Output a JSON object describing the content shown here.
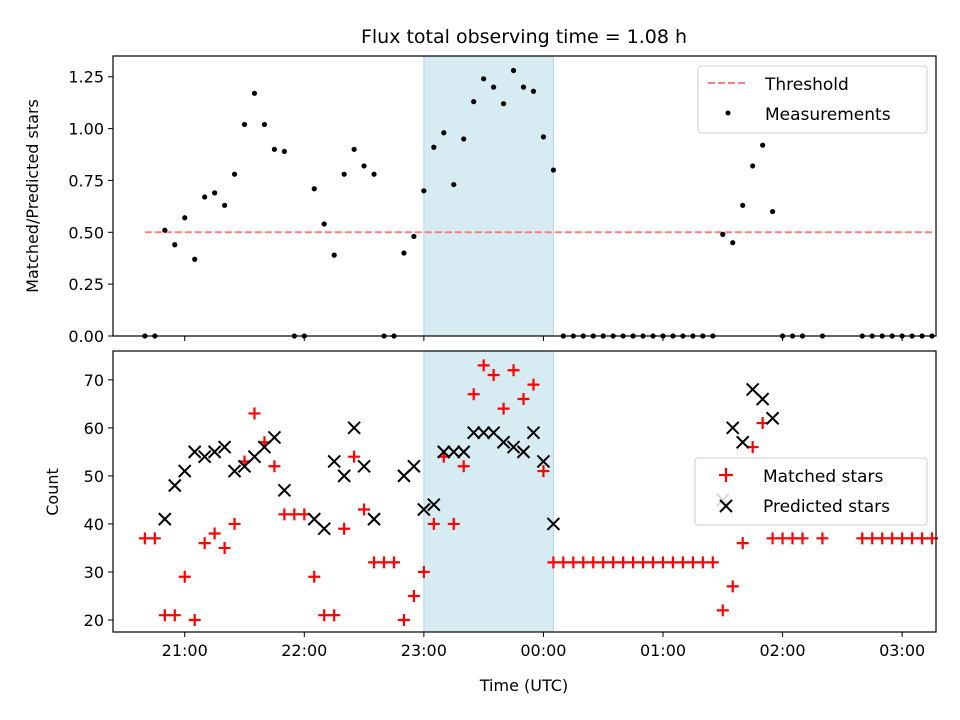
{
  "chart_data": [
    {
      "type": "scatter",
      "title": "Flux total observing time = 1.08 h",
      "ylabel": "Matched/Predicted stars",
      "xlabel": "",
      "x_ticks": [
        "21:00",
        "22:00",
        "23:00",
        "00:00",
        "01:00",
        "02:00",
        "03:00"
      ],
      "ylim": [
        0,
        1.35
      ],
      "y_ticks": [
        "0.00",
        "0.25",
        "0.50",
        "0.75",
        "1.00",
        "1.25"
      ],
      "shaded_interval": [
        "23:00",
        "00:05"
      ],
      "legend": {
        "position": "top-right",
        "entries": [
          "Threshold",
          "Measurements"
        ]
      },
      "threshold": {
        "name": "Threshold",
        "value": 0.5,
        "x_range": [
          "20:40",
          "03:15"
        ],
        "color": "#ff7f7f"
      },
      "series": [
        {
          "name": "Measurements",
          "color": "#000000",
          "points": [
            [
              "20:40",
              0
            ],
            [
              "20:45",
              0
            ],
            [
              "20:50",
              0.51
            ],
            [
              "20:55",
              0.44
            ],
            [
              "21:00",
              0.57
            ],
            [
              "21:05",
              0.37
            ],
            [
              "21:10",
              0.67
            ],
            [
              "21:15",
              0.69
            ],
            [
              "21:20",
              0.63
            ],
            [
              "21:25",
              0.78
            ],
            [
              "21:30",
              1.02
            ],
            [
              "21:35",
              1.17
            ],
            [
              "21:40",
              1.02
            ],
            [
              "21:45",
              0.9
            ],
            [
              "21:50",
              0.89
            ],
            [
              "21:55",
              0
            ],
            [
              "22:00",
              0
            ],
            [
              "22:05",
              0.71
            ],
            [
              "22:10",
              0.54
            ],
            [
              "22:15",
              0.39
            ],
            [
              "22:20",
              0.78
            ],
            [
              "22:25",
              0.9
            ],
            [
              "22:30",
              0.82
            ],
            [
              "22:35",
              0.78
            ],
            [
              "22:40",
              0
            ],
            [
              "22:45",
              0
            ],
            [
              "22:50",
              0.4
            ],
            [
              "22:55",
              0.48
            ],
            [
              "23:00",
              0.7
            ],
            [
              "23:05",
              0.91
            ],
            [
              "23:10",
              0.98
            ],
            [
              "23:15",
              0.73
            ],
            [
              "23:20",
              0.95
            ],
            [
              "23:25",
              1.13
            ],
            [
              "23:30",
              1.24
            ],
            [
              "23:35",
              1.2
            ],
            [
              "23:40",
              1.12
            ],
            [
              "23:45",
              1.28
            ],
            [
              "23:50",
              1.2
            ],
            [
              "23:55",
              1.18
            ],
            [
              "00:00",
              0.96
            ],
            [
              "00:05",
              0.8
            ],
            [
              "00:10",
              0
            ],
            [
              "00:15",
              0
            ],
            [
              "00:20",
              0
            ],
            [
              "00:25",
              0
            ],
            [
              "00:30",
              0
            ],
            [
              "00:35",
              0
            ],
            [
              "00:40",
              0
            ],
            [
              "00:45",
              0
            ],
            [
              "00:50",
              0
            ],
            [
              "00:55",
              0
            ],
            [
              "01:00",
              0
            ],
            [
              "01:05",
              0
            ],
            [
              "01:10",
              0
            ],
            [
              "01:15",
              0
            ],
            [
              "01:20",
              0
            ],
            [
              "01:25",
              0
            ],
            [
              "01:30",
              0.49
            ],
            [
              "01:35",
              0.45
            ],
            [
              "01:40",
              0.63
            ],
            [
              "01:45",
              0.82
            ],
            [
              "01:50",
              0.92
            ],
            [
              "01:55",
              0.6
            ],
            [
              "02:00",
              0
            ],
            [
              "02:05",
              0
            ],
            [
              "02:10",
              0
            ],
            [
              "02:20",
              0
            ],
            [
              "02:40",
              0
            ],
            [
              "02:45",
              0
            ],
            [
              "02:50",
              0
            ],
            [
              "02:55",
              0
            ],
            [
              "03:00",
              0
            ],
            [
              "03:05",
              0
            ],
            [
              "03:10",
              0
            ],
            [
              "03:15",
              0
            ]
          ]
        }
      ]
    },
    {
      "type": "scatter",
      "title": "",
      "ylabel": "Count",
      "xlabel": "Time (UTC)",
      "x_ticks": [
        "21:00",
        "22:00",
        "23:00",
        "00:00",
        "01:00",
        "02:00",
        "03:00"
      ],
      "ylim": [
        17.5,
        76
      ],
      "y_ticks": [
        "20",
        "30",
        "40",
        "50",
        "60",
        "70"
      ],
      "shaded_interval": [
        "23:00",
        "00:05"
      ],
      "legend": {
        "position": "center-right",
        "entries": [
          "Matched stars",
          "Predicted stars"
        ]
      },
      "series": [
        {
          "name": "Matched stars",
          "marker": "plus",
          "color": "#ff0000",
          "points": [
            [
              "20:40",
              37
            ],
            [
              "20:45",
              37
            ],
            [
              "20:50",
              21
            ],
            [
              "20:55",
              21
            ],
            [
              "21:00",
              29
            ],
            [
              "21:05",
              20
            ],
            [
              "21:10",
              36
            ],
            [
              "21:15",
              38
            ],
            [
              "21:20",
              35
            ],
            [
              "21:25",
              40
            ],
            [
              "21:30",
              53
            ],
            [
              "21:35",
              63
            ],
            [
              "21:40",
              57
            ],
            [
              "21:45",
              52
            ],
            [
              "21:50",
              42
            ],
            [
              "21:55",
              42
            ],
            [
              "22:00",
              42
            ],
            [
              "22:05",
              29
            ],
            [
              "22:10",
              21
            ],
            [
              "22:15",
              21
            ],
            [
              "22:20",
              39
            ],
            [
              "22:25",
              54
            ],
            [
              "22:30",
              43
            ],
            [
              "22:35",
              32
            ],
            [
              "22:40",
              32
            ],
            [
              "22:45",
              32
            ],
            [
              "22:50",
              20
            ],
            [
              "22:55",
              25
            ],
            [
              "23:00",
              30
            ],
            [
              "23:05",
              40
            ],
            [
              "23:10",
              54
            ],
            [
              "23:15",
              40
            ],
            [
              "23:20",
              52
            ],
            [
              "23:25",
              67
            ],
            [
              "23:30",
              73
            ],
            [
              "23:35",
              71
            ],
            [
              "23:40",
              64
            ],
            [
              "23:45",
              72
            ],
            [
              "23:50",
              66
            ],
            [
              "23:55",
              69
            ],
            [
              "00:00",
              51
            ],
            [
              "00:05",
              32
            ],
            [
              "00:10",
              32
            ],
            [
              "00:15",
              32
            ],
            [
              "00:20",
              32
            ],
            [
              "00:25",
              32
            ],
            [
              "00:30",
              32
            ],
            [
              "00:35",
              32
            ],
            [
              "00:40",
              32
            ],
            [
              "00:45",
              32
            ],
            [
              "00:50",
              32
            ],
            [
              "00:55",
              32
            ],
            [
              "01:00",
              32
            ],
            [
              "01:05",
              32
            ],
            [
              "01:10",
              32
            ],
            [
              "01:15",
              32
            ],
            [
              "01:20",
              32
            ],
            [
              "01:25",
              32
            ],
            [
              "01:30",
              22
            ],
            [
              "01:35",
              27
            ],
            [
              "01:40",
              36
            ],
            [
              "01:45",
              56
            ],
            [
              "01:50",
              61
            ],
            [
              "01:55",
              37
            ],
            [
              "02:00",
              37
            ],
            [
              "02:05",
              37
            ],
            [
              "02:10",
              37
            ],
            [
              "02:20",
              37
            ],
            [
              "02:40",
              37
            ],
            [
              "02:45",
              37
            ],
            [
              "02:50",
              37
            ],
            [
              "02:55",
              37
            ],
            [
              "03:00",
              37
            ],
            [
              "03:05",
              37
            ],
            [
              "03:10",
              37
            ],
            [
              "03:15",
              37
            ]
          ]
        },
        {
          "name": "Predicted stars",
          "marker": "x",
          "color": "#000000",
          "points": [
            [
              "20:50",
              41
            ],
            [
              "20:55",
              48
            ],
            [
              "21:00",
              51
            ],
            [
              "21:05",
              55
            ],
            [
              "21:10",
              54
            ],
            [
              "21:15",
              55
            ],
            [
              "21:20",
              56
            ],
            [
              "21:25",
              51
            ],
            [
              "21:30",
              52
            ],
            [
              "21:35",
              54
            ],
            [
              "21:40",
              56
            ],
            [
              "21:45",
              58
            ],
            [
              "21:50",
              47
            ],
            [
              "22:05",
              41
            ],
            [
              "22:10",
              39
            ],
            [
              "22:15",
              53
            ],
            [
              "22:20",
              50
            ],
            [
              "22:25",
              60
            ],
            [
              "22:30",
              52
            ],
            [
              "22:35",
              41
            ],
            [
              "22:50",
              50
            ],
            [
              "22:55",
              52
            ],
            [
              "23:00",
              43
            ],
            [
              "23:05",
              44
            ],
            [
              "23:10",
              55
            ],
            [
              "23:15",
              55
            ],
            [
              "23:20",
              55
            ],
            [
              "23:25",
              59
            ],
            [
              "23:30",
              59
            ],
            [
              "23:35",
              59
            ],
            [
              "23:40",
              57
            ],
            [
              "23:45",
              56
            ],
            [
              "23:50",
              55
            ],
            [
              "23:55",
              59
            ],
            [
              "00:00",
              53
            ],
            [
              "00:05",
              40
            ],
            [
              "01:30",
              45
            ],
            [
              "01:35",
              60
            ],
            [
              "01:40",
              57
            ],
            [
              "01:45",
              68
            ],
            [
              "01:50",
              66
            ],
            [
              "01:55",
              62
            ]
          ]
        }
      ]
    }
  ]
}
